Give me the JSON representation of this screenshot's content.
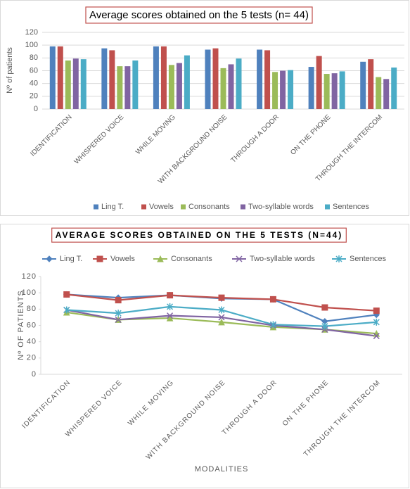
{
  "chart_data": [
    {
      "type": "bar",
      "title": "Average scores obtained on the 5 tests (n= 44)",
      "y_label": "Nº of patients",
      "categories": [
        "IDENTIFICATION",
        "WHISPERED VOICE",
        "WHILE MOVING",
        "WITH BACKGROUND NOISE",
        "THROUGH A DOOR",
        "ON THE PHONE",
        "THROUGH THE INTERCOM"
      ],
      "series": [
        {
          "name": "Ling T.",
          "color": "#4f81bd",
          "values": [
            98,
            95,
            98,
            93,
            93,
            66,
            74
          ]
        },
        {
          "name": "Vowels",
          "color": "#c0504d",
          "values": [
            98,
            92,
            98,
            95,
            92,
            83,
            78
          ]
        },
        {
          "name": "Consonants",
          "color": "#9bbb59",
          "values": [
            76,
            67,
            69,
            64,
            58,
            55,
            50
          ]
        },
        {
          "name": "Two-syllable words",
          "color": "#8064a2",
          "values": [
            79,
            67,
            72,
            70,
            60,
            56,
            47
          ]
        },
        {
          "name": "Sentences",
          "color": "#4bacc6",
          "values": [
            78,
            76,
            84,
            79,
            61,
            59,
            65
          ]
        }
      ],
      "ylim": [
        0,
        120
      ],
      "yticks": [
        0,
        20,
        40,
        60,
        80,
        100,
        120
      ],
      "grid": true,
      "legend": "bottom"
    },
    {
      "type": "line",
      "title": "AVERAGE SCORES OBTAINED ON THE 5 TESTS (N=44)",
      "y_label": "Nº OF PATIENTS",
      "x_label": "MODALITIES",
      "categories": [
        "IDENTIFICATION",
        "WHISPERED VOICE",
        "WHILE MOVING",
        "WITH BACKGROUND NOISE",
        "THROUGH A DOOR",
        "ON THE PHONE",
        "THROUGH THE INTERCOM"
      ],
      "series": [
        {
          "name": "Ling T.",
          "color": "#4f81bd",
          "marker": "diamond",
          "values": [
            98,
            94,
            97,
            93,
            92,
            65,
            73
          ]
        },
        {
          "name": "Vowels",
          "color": "#c0504d",
          "marker": "square",
          "values": [
            98,
            91,
            97,
            94,
            92,
            82,
            78
          ]
        },
        {
          "name": "Consonants",
          "color": "#9bbb59",
          "marker": "triangle",
          "values": [
            76,
            67,
            69,
            64,
            58,
            55,
            50
          ]
        },
        {
          "name": "Two-syllable words",
          "color": "#8064a2",
          "marker": "x",
          "values": [
            79,
            67,
            72,
            70,
            60,
            55,
            47
          ]
        },
        {
          "name": "Sentences",
          "color": "#4bacc6",
          "marker": "star",
          "values": [
            79,
            75,
            83,
            79,
            61,
            59,
            64
          ]
        }
      ],
      "ylim": [
        0,
        120
      ],
      "yticks": [
        0,
        20,
        40,
        60,
        80,
        100,
        120
      ],
      "grid": false,
      "legend": "top"
    }
  ]
}
